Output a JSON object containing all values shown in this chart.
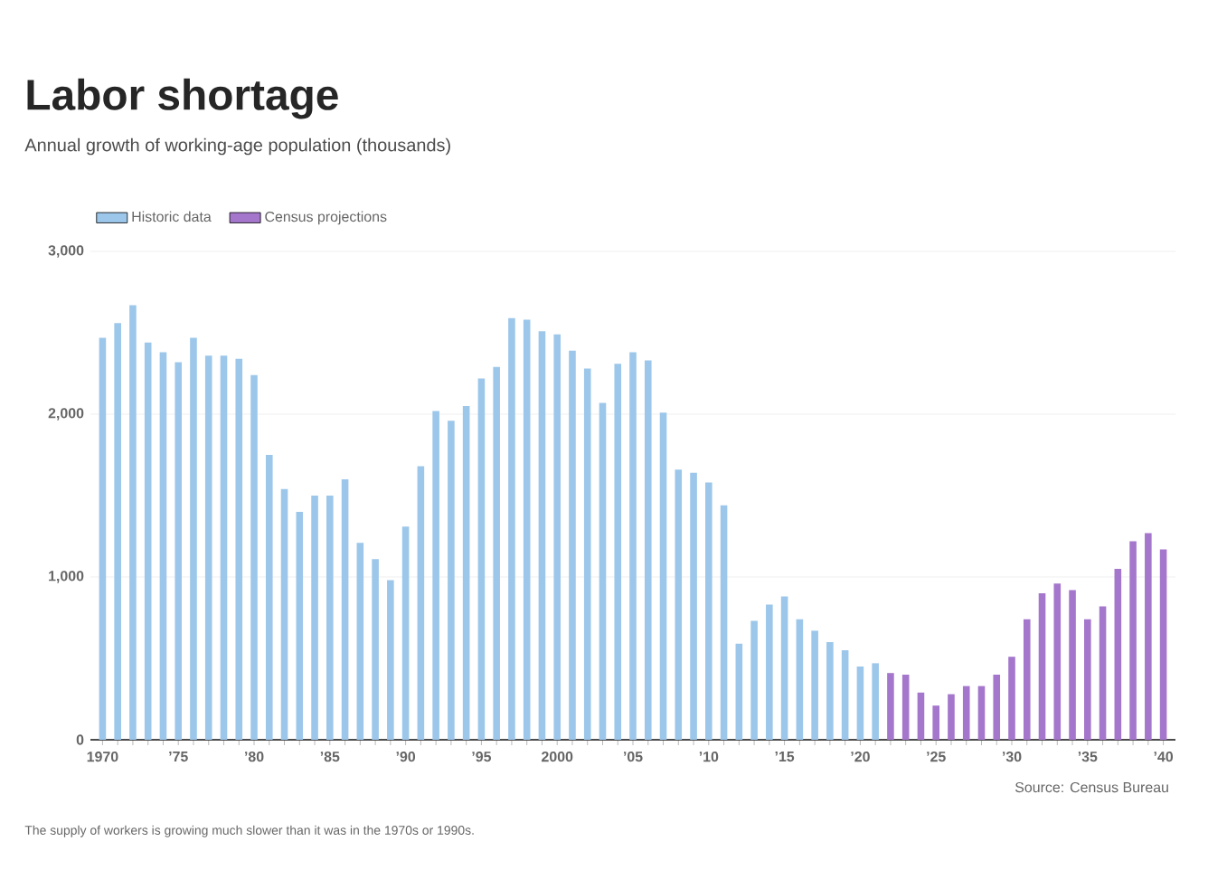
{
  "chart_data": {
    "type": "bar",
    "title": "Labor shortage",
    "subtitle": "Annual growth of working-age population (thousands)",
    "categories": [
      "1970",
      null,
      null,
      null,
      null,
      "’75",
      null,
      null,
      null,
      null,
      "’80",
      null,
      null,
      null,
      null,
      "’85",
      null,
      null,
      null,
      null,
      "’90",
      null,
      null,
      null,
      null,
      "’95",
      null,
      null,
      null,
      null,
      "2000",
      null,
      null,
      null,
      null,
      "’05",
      null,
      null,
      null,
      null,
      "’10",
      null,
      null,
      null,
      null,
      "’15",
      null,
      null,
      null,
      null,
      "’20",
      null,
      null,
      null,
      null,
      "’25",
      null,
      null,
      null,
      null,
      "’30",
      null,
      null,
      null,
      null,
      "’35",
      null,
      null,
      null,
      null,
      "’40"
    ],
    "series": [
      {
        "name": "Historic data",
        "color": "#9cc7ea",
        "values": [
          2470,
          2560,
          2670,
          2440,
          2380,
          2320,
          2470,
          2360,
          2360,
          2340,
          2240,
          1750,
          1540,
          1400,
          1500,
          1500,
          1600,
          1210,
          1110,
          980,
          1310,
          1680,
          2020,
          1960,
          2050,
          2220,
          2290,
          2590,
          2580,
          2510,
          2490,
          2390,
          2280,
          2070,
          2310,
          2380,
          2330,
          2010,
          1660,
          1640,
          1580,
          1440,
          590,
          730,
          830,
          880,
          740,
          670,
          600,
          550,
          450,
          470,
          null,
          null,
          null,
          null,
          null,
          null,
          null,
          null,
          null,
          null,
          null,
          null,
          null,
          null,
          null,
          null,
          null,
          null,
          null
        ]
      },
      {
        "name": "Census projections",
        "color": "#a577cc",
        "values": [
          null,
          null,
          null,
          null,
          null,
          null,
          null,
          null,
          null,
          null,
          null,
          null,
          null,
          null,
          null,
          null,
          null,
          null,
          null,
          null,
          null,
          null,
          null,
          null,
          null,
          null,
          null,
          null,
          null,
          null,
          null,
          null,
          null,
          null,
          null,
          null,
          null,
          null,
          null,
          null,
          null,
          null,
          null,
          null,
          null,
          null,
          null,
          null,
          null,
          null,
          null,
          null,
          410,
          400,
          290,
          210,
          280,
          330,
          330,
          400,
          510,
          740,
          900,
          960,
          920,
          740,
          820,
          1050,
          1220,
          1270,
          1170
        ]
      }
    ],
    "ylim": [
      0,
      3000
    ],
    "yticks": [
      0,
      {
        "value": 1000,
        "label": "1,000"
      },
      {
        "value": 2000,
        "label": "2,000"
      },
      {
        "value": 3000,
        "label": "3,000"
      }
    ],
    "grid": "y",
    "legend": "top left",
    "annotations": [
      "Source: Census Bureau",
      "The supply of workers is growing much slower than it was in the 1970s or 1990s."
    ]
  }
}
